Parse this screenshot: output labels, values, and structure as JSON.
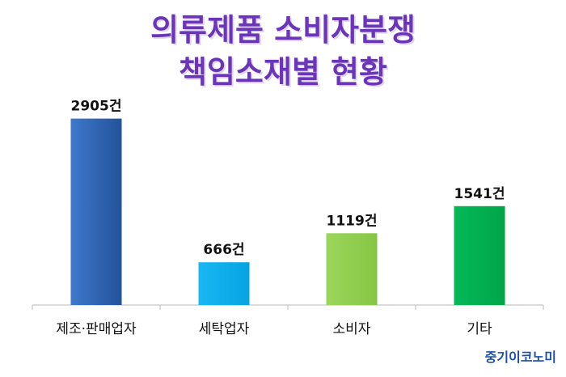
{
  "chart_data": {
    "type": "bar",
    "title_lines": [
      "의류제품 소비자분쟁",
      "책임소재별 현황"
    ],
    "categories": [
      "제조·판매업자",
      "세탁업자",
      "소비자",
      "기타"
    ],
    "values": [
      2905,
      666,
      1119,
      1541
    ],
    "value_labels": [
      "2905건",
      "666건",
      "1119건",
      "1541건"
    ],
    "unit": "건",
    "ylim": [
      0,
      3100
    ],
    "grid": false,
    "legend": "none",
    "colors": [
      "#2f63b3",
      "#0fb0ee",
      "#92d050",
      "#00b050"
    ]
  },
  "source": "중기이코노미"
}
